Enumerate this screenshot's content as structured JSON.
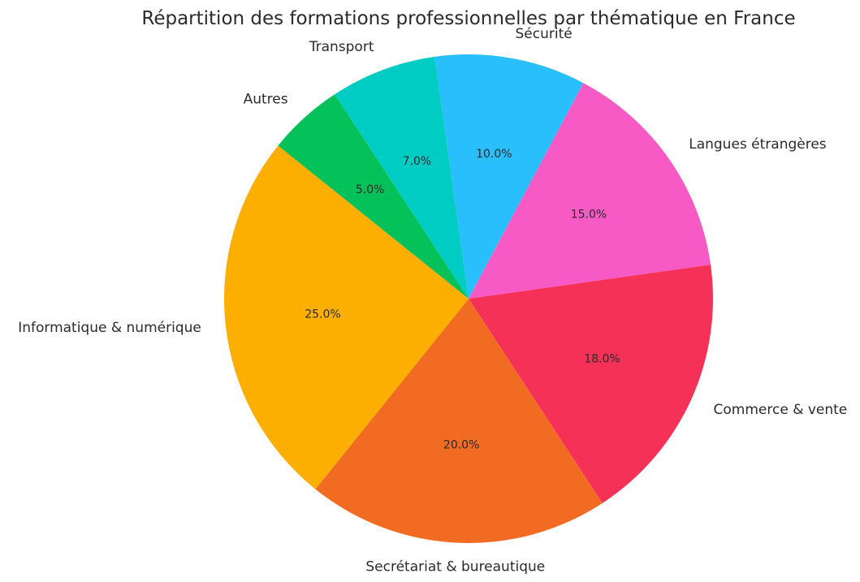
{
  "chart_data": {
    "type": "pie",
    "title": "Répartition des formations professionnelles par thématique en France",
    "slices": [
      {
        "label": "Sécurité",
        "value": 10.0,
        "pct_label": "10.0%",
        "color": "#29bffc"
      },
      {
        "label": "Langues étrangères",
        "value": 15.0,
        "pct_label": "15.0%",
        "color": "#f75ac5"
      },
      {
        "label": "Commerce & vente",
        "value": 18.0,
        "pct_label": "18.0%",
        "color": "#f53157"
      },
      {
        "label": "Secrétariat & bureautique",
        "value": 20.0,
        "pct_label": "20.0%",
        "color": "#f26b22"
      },
      {
        "label": "Informatique & numérique",
        "value": 25.0,
        "pct_label": "25.0%",
        "color": "#fdaf00"
      },
      {
        "label": "Autres",
        "value": 5.0,
        "pct_label": "5.0%",
        "color": "#04c159"
      },
      {
        "label": "Transport",
        "value": 7.0,
        "pct_label": "7.0%",
        "color": "#00ccc3"
      }
    ],
    "start_angle_deg": 98,
    "direction": "clockwise",
    "legend": "none"
  }
}
